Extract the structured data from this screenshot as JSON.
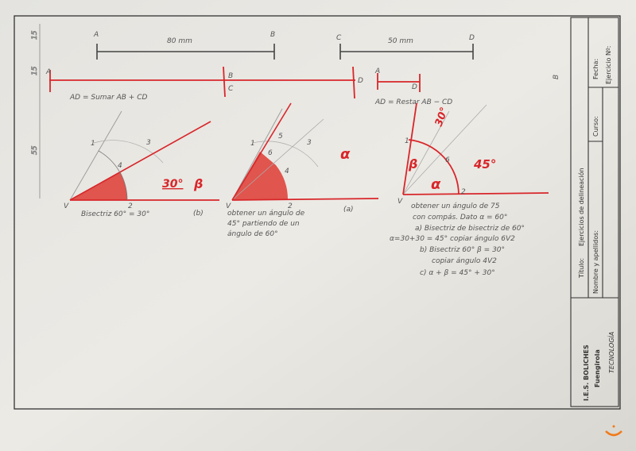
{
  "top": {
    "segment_ab": {
      "start": "A",
      "end": "B",
      "length": "80 mm"
    },
    "segment_cd": {
      "start": "C",
      "end": "D",
      "length": "50 mm"
    },
    "dimensions": [
      "15",
      "15",
      "55"
    ]
  },
  "sum": {
    "points": [
      "A",
      "B",
      "C",
      "D"
    ],
    "caption": "AD = Sumar AB + CD"
  },
  "difference": {
    "points": [
      "A",
      "D"
    ],
    "caption": "AD = Restar AB − CD"
  },
  "figure_b": {
    "vertex": "V",
    "marks": [
      "1",
      "2",
      "3",
      "4"
    ],
    "angle_label": "30°",
    "greek": "β",
    "caption": "Bisectriz 60° = 30°",
    "tag": "(b)"
  },
  "figure_a": {
    "vertex": "V",
    "marks": [
      "1",
      "2",
      "3",
      "4",
      "5",
      "6"
    ],
    "greek": "α",
    "caption": [
      "obtener un ángulo de",
      "45° partiendo de un",
      "ángulo de 60°"
    ],
    "tag": "(a)"
  },
  "figure_c": {
    "vertex": "V",
    "marks": [
      "1",
      "2",
      "6"
    ],
    "labels": {
      "top": "30°",
      "beta": "β",
      "alpha": "α",
      "angle45": "45°"
    },
    "caption": [
      "obtener un ángulo de 75",
      "con compás. Dato α = 60°",
      "a) Bisectriz de bisectriz de 60°",
      "α=30+30 = 45° copiar ángulo 6V2",
      "b) Bisectriz 60° β = 30°",
      "copiar ángulo 4V2",
      "c) α + β = 45° + 30°"
    ]
  },
  "title_block": {
    "school": "I.E.S. BOLICHES",
    "town": "Fuengirola",
    "dept": "TECNOLOGÍA",
    "title_label": "Título:",
    "title_value": "Ejercicios de delineación",
    "name_label": "Nombre y apellidos:",
    "course_label": "Curso:",
    "date_label": "Fecha:",
    "exercise_label": "Ejercicio Nº:"
  },
  "colors": {
    "paper": "#e9e7e2",
    "red": "#d8262a",
    "fill": "#de3b33",
    "pencil": "#777777"
  }
}
